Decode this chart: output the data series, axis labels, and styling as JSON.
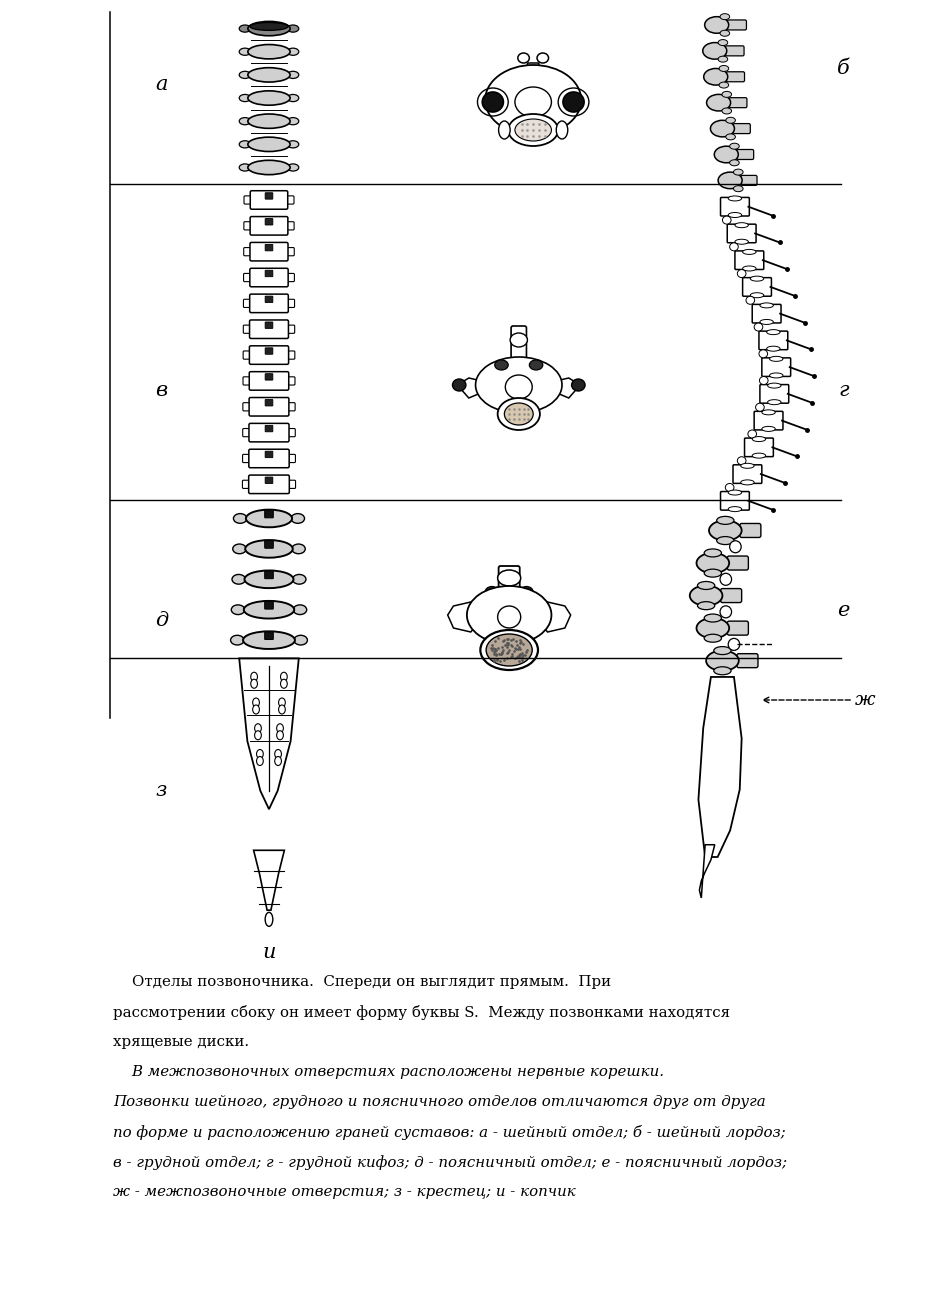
{
  "bg_color": "#ffffff",
  "line_color": "#000000",
  "fig_width": 9.4,
  "fig_height": 12.95,
  "caption_line1": "    Отделы позвоночника.  Спереди он выглядит прямым.  При",
  "caption_line2": "рассмотрении сбоку он имеет форму буквы S.  Между позвонками находятся",
  "caption_line3": "хрящевые диски.",
  "caption_line4": "    В межпозвоночных отверстиях расположены нервные корешки.",
  "caption_line5": "Позвонки шейного, грудного и поясничного отделов отличаются друг от друга",
  "caption_line6": "по форме и расположению граней суставов: а - шейный отдел; б - шейный лордоз;",
  "caption_line7": "в - грудной отдел; г - грудной кифоз; д - поясничный отдел; е - поясничный лордоз;",
  "caption_line8": "ж - межпозвоночные отверстия; з - крестец; и - копчик"
}
